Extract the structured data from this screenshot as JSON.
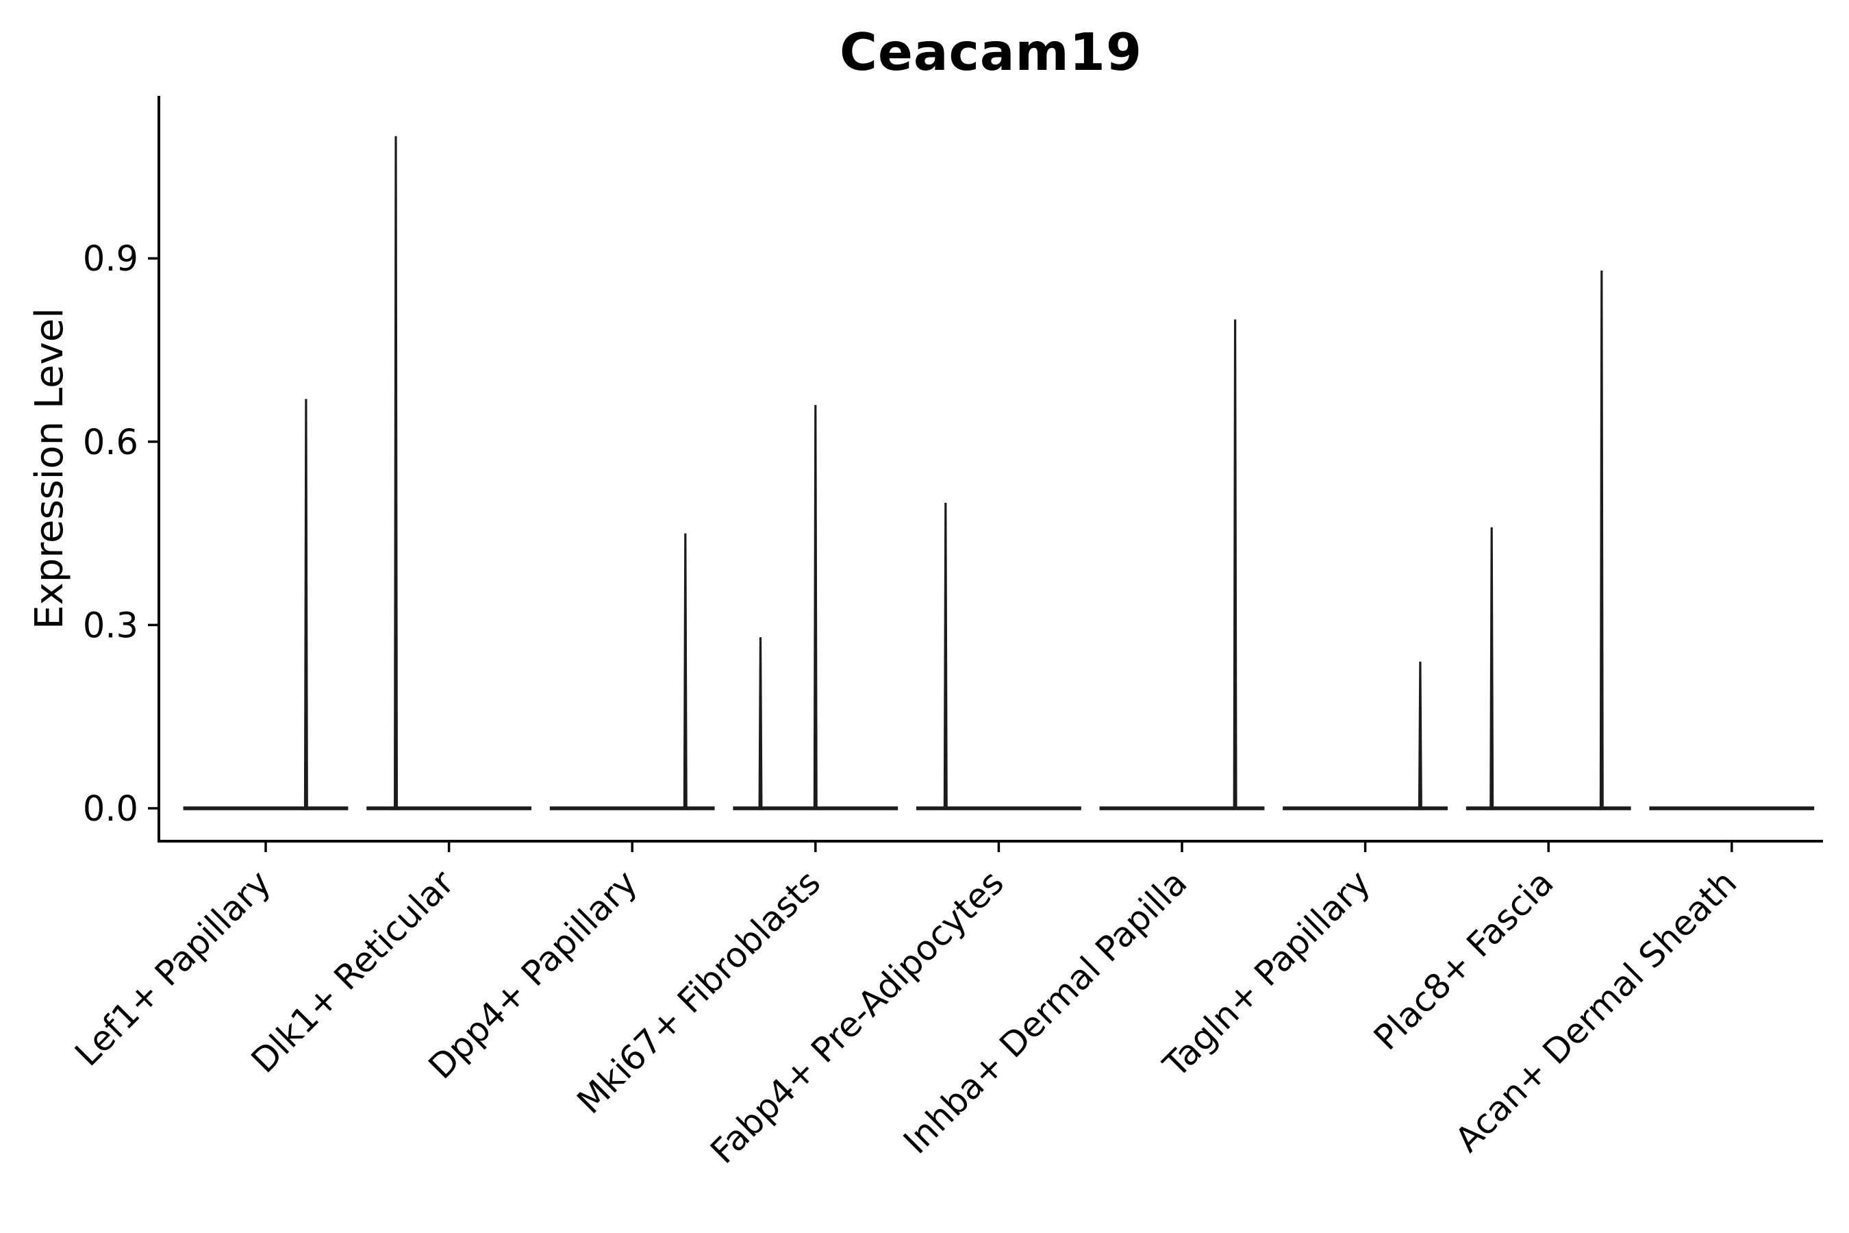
{
  "chart_data": {
    "type": "violin",
    "title": "Ceacam19",
    "xlabel": "",
    "ylabel": "Expression Level",
    "ylim": [
      -0.05,
      1.17
    ],
    "yticks": [
      0.0,
      0.3,
      0.6,
      0.9
    ],
    "ytick_labels": [
      "0.0",
      "0.3",
      "0.6",
      "0.9"
    ],
    "grid": false,
    "legend": "none",
    "colors": {
      "violin": "#1c1c1c",
      "axis": "#000000",
      "text": "#000000",
      "background": "#ffffff"
    },
    "categories": [
      "Lef1+ Papillary",
      "Dlk1+ Reticular",
      "Dpp4+ Papillary",
      "Mki67+ Fibroblasts",
      "Fabp4+ Pre-Adipocytes",
      "Inhba+ Dermal Papilla",
      "Tagln+ Papillary",
      "Plac8+ Fascia",
      "Acan+ Dermal Sheath"
    ],
    "violins": [
      {
        "category": "Lef1+ Papillary",
        "baseline_value": 0.0,
        "spikes": [
          {
            "x_offset": 0.22,
            "max_expression": 0.67
          }
        ]
      },
      {
        "category": "Dlk1+ Reticular",
        "baseline_value": 0.0,
        "spikes": [
          {
            "x_offset": -0.29,
            "max_expression": 1.1
          }
        ]
      },
      {
        "category": "Dpp4+ Papillary",
        "baseline_value": 0.0,
        "spikes": [
          {
            "x_offset": 0.29,
            "max_expression": 0.45
          }
        ]
      },
      {
        "category": "Mki67+ Fibroblasts",
        "baseline_value": 0.0,
        "spikes": [
          {
            "x_offset": -0.3,
            "max_expression": 0.28
          },
          {
            "x_offset": 0.0,
            "max_expression": 0.66
          }
        ]
      },
      {
        "category": "Fabp4+ Pre-Adipocytes",
        "baseline_value": 0.0,
        "spikes": [
          {
            "x_offset": -0.29,
            "max_expression": 0.5
          }
        ]
      },
      {
        "category": "Inhba+ Dermal Papilla",
        "baseline_value": 0.0,
        "spikes": [
          {
            "x_offset": 0.29,
            "max_expression": 0.8
          }
        ]
      },
      {
        "category": "Tagln+ Papillary",
        "baseline_value": 0.0,
        "spikes": [
          {
            "x_offset": 0.3,
            "max_expression": 0.24
          }
        ]
      },
      {
        "category": "Plac8+ Fascia",
        "baseline_value": 0.0,
        "spikes": [
          {
            "x_offset": -0.31,
            "max_expression": 0.46
          },
          {
            "x_offset": 0.29,
            "max_expression": 0.88
          }
        ]
      },
      {
        "category": "Acan+ Dermal Sheath",
        "baseline_value": 0.0,
        "spikes": []
      }
    ]
  }
}
